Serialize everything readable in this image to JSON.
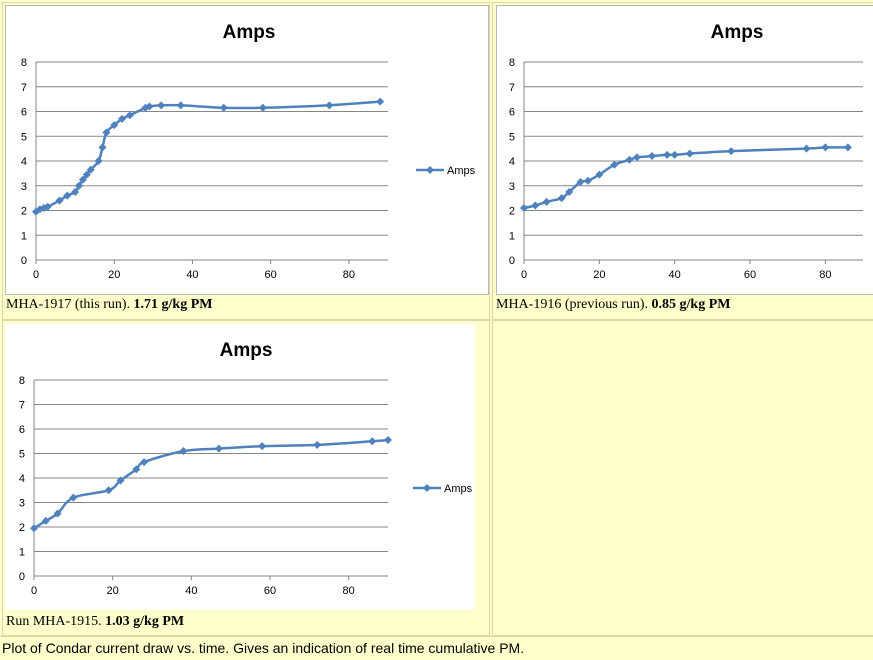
{
  "chart_data": [
    {
      "type": "line",
      "title": "Amps",
      "legend": "Amps",
      "series_name": "Amps",
      "xlim": [
        0,
        90
      ],
      "ylim": [
        0,
        8
      ],
      "xticks": [
        0,
        20,
        40,
        60,
        80
      ],
      "yticks": [
        0,
        1,
        2,
        3,
        4,
        5,
        6,
        7,
        8
      ],
      "x": [
        0,
        1,
        2,
        3,
        6,
        8,
        10,
        11,
        12,
        13,
        14,
        16,
        17,
        18,
        20,
        22,
        24,
        28,
        29,
        32,
        37,
        48,
        58,
        75,
        88
      ],
      "y": [
        1.95,
        2.05,
        2.1,
        2.15,
        2.4,
        2.6,
        2.75,
        3.0,
        3.25,
        3.45,
        3.65,
        4.0,
        4.55,
        5.15,
        5.45,
        5.7,
        5.85,
        6.15,
        6.2,
        6.25,
        6.25,
        6.15,
        6.15,
        6.25,
        6.4
      ],
      "grid": true,
      "legend_position": "right"
    },
    {
      "type": "line",
      "title": "Amps",
      "series_name": "Amps",
      "xlim": [
        0,
        90
      ],
      "ylim": [
        0,
        8
      ],
      "xticks": [
        0,
        20,
        40,
        60,
        80
      ],
      "yticks": [
        0,
        1,
        2,
        3,
        4,
        5,
        6,
        7,
        8
      ],
      "x": [
        0,
        3,
        6,
        10,
        12,
        15,
        17,
        20,
        24,
        28,
        30,
        34,
        38,
        40,
        44,
        55,
        75,
        80,
        86
      ],
      "y": [
        2.1,
        2.2,
        2.35,
        2.5,
        2.75,
        3.15,
        3.2,
        3.45,
        3.85,
        4.05,
        4.15,
        4.2,
        4.25,
        4.25,
        4.3,
        4.4,
        4.5,
        4.55,
        4.55
      ],
      "grid": true
    },
    {
      "type": "line",
      "title": "Amps",
      "legend": "Amps",
      "series_name": "Amps",
      "xlim": [
        0,
        90
      ],
      "ylim": [
        0,
        8
      ],
      "xticks": [
        0,
        20,
        40,
        60,
        80
      ],
      "yticks": [
        0,
        1,
        2,
        3,
        4,
        5,
        6,
        7,
        8
      ],
      "x": [
        0,
        3,
        6,
        10,
        19,
        22,
        26,
        28,
        38,
        47,
        58,
        72,
        86,
        90
      ],
      "y": [
        1.95,
        2.25,
        2.55,
        3.2,
        3.5,
        3.9,
        4.35,
        4.65,
        5.1,
        5.2,
        5.3,
        5.35,
        5.5,
        5.55
      ],
      "grid": true,
      "legend_position": "right"
    }
  ],
  "captions": {
    "run1_label": "MHA-1917 (this run).  ",
    "run1_value": "1.71 g/kg PM",
    "run2_label": "MHA-1916 (previous run).  ",
    "run2_value": "0.85 g/kg PM",
    "run3_label": "Run MHA-1915.  ",
    "run3_value": "1.03 g/kg PM"
  },
  "footer": "Plot of Condar current draw vs. time. Gives an indication of real time cumulative PM.",
  "colors": {
    "series": "#4f81bd",
    "grid": "#868686",
    "background": "#ffffcc"
  }
}
